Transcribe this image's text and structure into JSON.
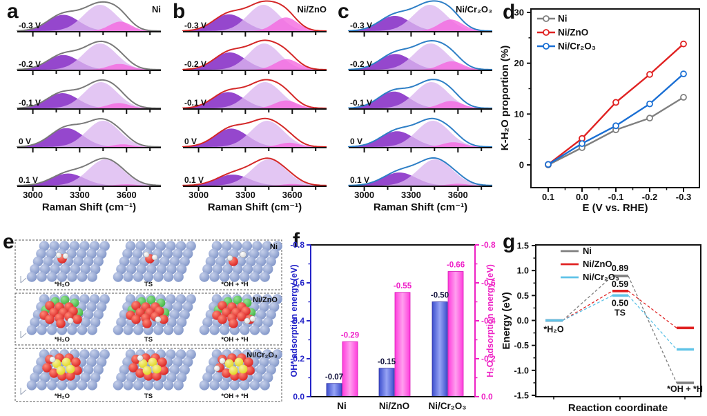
{
  "panel_letters": {
    "a": "a",
    "b": "b",
    "c": "c",
    "d": "d",
    "e": "e",
    "f": "f",
    "g": "g"
  },
  "raman_common": {
    "xlabel": "Raman Shift (cm⁻¹)",
    "x_tick_labels": [
      "3000",
      "3300",
      "3600"
    ],
    "peak_colors": {
      "purple": "#8a33c8",
      "lavender": "#dbb6f0",
      "pink": "#f468e0"
    }
  },
  "chart_data": [
    {
      "id": "a",
      "type": "area",
      "title": "Ni",
      "envelope_color": "#7a7a7a",
      "xlim": [
        2900,
        3820
      ],
      "rows": [
        {
          "label": "-0.3 V",
          "peaks": [
            [
              3195,
              100,
              0.62
            ],
            [
              3430,
              105,
              1.0
            ],
            [
              3560,
              70,
              0.36
            ]
          ]
        },
        {
          "label": "-0.2 V",
          "peaks": [
            [
              3195,
              100,
              0.56
            ],
            [
              3430,
              105,
              1.0
            ],
            [
              3555,
              70,
              0.22
            ]
          ]
        },
        {
          "label": "-0.1 V",
          "peaks": [
            [
              3190,
              100,
              0.58
            ],
            [
              3435,
              105,
              1.0
            ],
            [
              3550,
              70,
              0.2
            ]
          ]
        },
        {
          "label": "0 V",
          "peaks": [
            [
              3215,
              105,
              0.72
            ],
            [
              3450,
              105,
              1.0
            ],
            [
              3575,
              60,
              0.1
            ]
          ]
        },
        {
          "label": "0.1 V",
          "peaks": [
            [
              3225,
              105,
              0.46
            ],
            [
              3465,
              110,
              1.0
            ],
            [
              3600,
              60,
              0.05
            ]
          ]
        }
      ]
    },
    {
      "id": "b",
      "type": "area",
      "title": "Ni/ZnO",
      "envelope_color": "#d42828",
      "xlim": [
        2900,
        3820
      ],
      "rows": [
        {
          "label": "-0.3 V",
          "peaks": [
            [
              3195,
              100,
              0.64
            ],
            [
              3415,
              100,
              1.0
            ],
            [
              3560,
              75,
              0.52
            ]
          ]
        },
        {
          "label": "-0.2 V",
          "peaks": [
            [
              3200,
              100,
              0.66
            ],
            [
              3420,
              100,
              1.0
            ],
            [
              3565,
              75,
              0.4
            ]
          ]
        },
        {
          "label": "-0.1 V",
          "peaks": [
            [
              3190,
              100,
              0.62
            ],
            [
              3425,
              105,
              1.0
            ],
            [
              3560,
              72,
              0.3
            ]
          ]
        },
        {
          "label": "0 V",
          "peaks": [
            [
              3210,
              105,
              0.7
            ],
            [
              3440,
              105,
              1.0
            ],
            [
              3580,
              65,
              0.16
            ]
          ]
        },
        {
          "label": "0.1 V",
          "peaks": [
            [
              3220,
              105,
              0.42
            ],
            [
              3450,
              110,
              1.0
            ],
            [
              3600,
              60,
              0.06
            ]
          ]
        }
      ]
    },
    {
      "id": "c",
      "type": "area",
      "title": "Ni/Cr₂O₃",
      "envelope_color": "#2e7fc6",
      "xlim": [
        2900,
        3820
      ],
      "rows": [
        {
          "label": "-0.3 V",
          "peaks": [
            [
              3195,
              100,
              0.58
            ],
            [
              3420,
              105,
              1.0
            ],
            [
              3555,
              75,
              0.44
            ]
          ]
        },
        {
          "label": "-0.2 V",
          "peaks": [
            [
              3200,
              100,
              0.6
            ],
            [
              3425,
              105,
              1.0
            ],
            [
              3560,
              72,
              0.32
            ]
          ]
        },
        {
          "label": "-0.1 V",
          "peaks": [
            [
              3190,
              100,
              0.64
            ],
            [
              3430,
              105,
              1.0
            ],
            [
              3555,
              72,
              0.28
            ]
          ]
        },
        {
          "label": "0 V",
          "peaks": [
            [
              3210,
              105,
              0.6
            ],
            [
              3440,
              105,
              1.0
            ],
            [
              3570,
              68,
              0.18
            ]
          ]
        },
        {
          "label": "0.1 V",
          "peaks": [
            [
              3225,
              105,
              0.5
            ],
            [
              3455,
              110,
              1.0
            ],
            [
              3600,
              60,
              0.07
            ]
          ]
        }
      ]
    },
    {
      "id": "d",
      "type": "line",
      "xlabel": "E (V vs. RHE)",
      "ylabel": "K-H₂O proportion (%)",
      "x_categories": [
        "0.1",
        "0.0",
        "-0.1",
        "-0.2",
        "-0.3"
      ],
      "yticks": [
        0,
        10,
        20,
        30
      ],
      "ylim": [
        -4.6,
        30
      ],
      "series": [
        {
          "name": "Ni",
          "color": "#7f7f7f",
          "values": [
            0.0,
            3.4,
            6.9,
            9.2,
            13.3
          ]
        },
        {
          "name": "Ni/ZnO",
          "color": "#e02222",
          "values": [
            0.1,
            5.2,
            12.3,
            17.8,
            23.8
          ]
        },
        {
          "name": "Ni/Cr₂O₃",
          "color": "#1a6fd4",
          "values": [
            0.1,
            4.2,
            7.7,
            12.0,
            17.9
          ]
        }
      ],
      "legend_position": "top-left",
      "grid": false
    },
    {
      "id": "f",
      "type": "bar",
      "categories": [
        "Ni",
        "Ni/ZnO",
        "Ni/Cr₂O₃"
      ],
      "yticks": [
        "0.0",
        "-0.2",
        "-0.4",
        "-0.6",
        "-0.8"
      ],
      "ylim": [
        0,
        -0.8
      ],
      "series": [
        {
          "name": "OH* adsorption energy (eV)",
          "color": "#3c4ecd",
          "color_light": "#97a4f5",
          "axis_color": "#2424c8",
          "label_color": "#10103a",
          "values": [
            -0.07,
            -0.15,
            -0.5
          ]
        },
        {
          "name": "H₂O adsorption energy (eV)",
          "color": "#ff3cdc",
          "color_light": "#ffa0ef",
          "axis_color": "#ee22c4",
          "label_color": "#ee1fc8",
          "values": [
            -0.29,
            -0.55,
            -0.66
          ]
        }
      ]
    },
    {
      "id": "g",
      "type": "levels",
      "xlabel": "Reaction coordinate",
      "ylabel": "Energy (eV)",
      "states": [
        "*H₂O",
        "TS",
        "*OH + *H"
      ],
      "yticks": [
        "1.5",
        "1.0",
        "0.5",
        "0.0",
        "-0.5",
        "-1.0",
        "-1.5"
      ],
      "ylim": [
        -1.5,
        1.5
      ],
      "series": [
        {
          "name": "Ni",
          "color": "#7f7f7f",
          "values": [
            0.0,
            0.89,
            -1.25
          ]
        },
        {
          "name": "Ni/ZnO",
          "color": "#e02222",
          "values": [
            0.0,
            0.59,
            -0.15
          ]
        },
        {
          "name": "Ni/Cr₂O₃",
          "color": "#5fc3e7",
          "values": [
            0.0,
            0.5,
            -0.58
          ]
        }
      ],
      "ts_labels": [
        "0.89",
        "0.59",
        "0.50"
      ],
      "ts_text": "TS",
      "legend_position": "top-left",
      "grid": false
    }
  ],
  "panel_e": {
    "rows": [
      {
        "label": "Ni",
        "surface": "ni",
        "states": [
          "*H₂O",
          "TS",
          "*OH + *H"
        ]
      },
      {
        "label": "Ni/ZnO",
        "surface": "zno",
        "states": [
          "*H₂O",
          "TS",
          "*OH + *H"
        ]
      },
      {
        "label": "Ni/Cr₂O₃",
        "surface": "cr2o3",
        "states": [
          "*H₂O",
          "TS",
          "*OH + *H"
        ]
      }
    ],
    "atom_colors": {
      "Ni": "#8095c8",
      "O": "#d92121",
      "Zn": "#41b441",
      "Cr": "#e0d51f",
      "H": "#f4f4f4"
    }
  }
}
